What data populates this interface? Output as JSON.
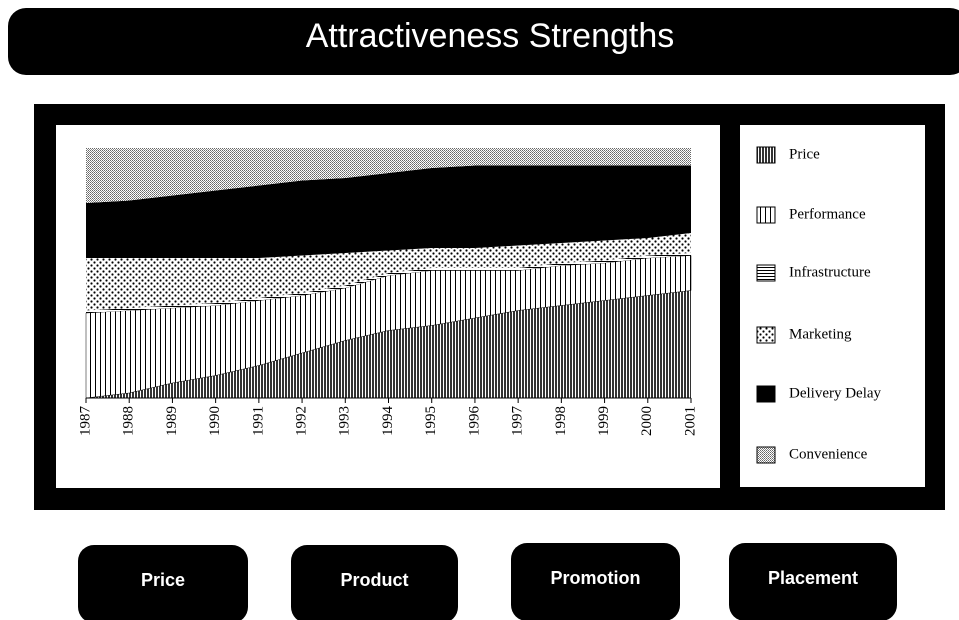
{
  "header": {
    "title": "Attractiveness Strengths"
  },
  "chart_data": {
    "type": "stacked_area",
    "categories": [
      "1987",
      "1988",
      "1989",
      "1990",
      "1991",
      "1992",
      "1993",
      "1994",
      "1995",
      "1996",
      "1997",
      "1998",
      "1999",
      "2000",
      "2001"
    ],
    "series": [
      {
        "name": "Price",
        "color": "#555555",
        "values": [
          0,
          2,
          6,
          9,
          13,
          18,
          23,
          27,
          29,
          32,
          35,
          37,
          39,
          41,
          43
        ]
      },
      {
        "name": "Performance",
        "color": "#ffffff",
        "values": [
          34,
          33,
          30,
          28,
          26,
          23,
          21,
          22,
          22,
          19,
          16,
          16,
          15,
          15,
          14
        ]
      },
      {
        "name": "Infrastructure",
        "color": "#888888",
        "values": [
          1,
          1,
          1,
          1,
          1,
          1,
          1,
          1,
          1,
          1,
          1,
          1,
          1,
          1,
          1
        ]
      },
      {
        "name": "Marketing",
        "color": "#dddddd",
        "values": [
          21,
          20,
          19,
          18,
          16,
          15,
          13,
          9,
          8,
          8,
          9,
          8,
          8,
          7,
          8
        ]
      },
      {
        "name": "Delivery Delay",
        "color": "#000000",
        "values": [
          22,
          23,
          25,
          27,
          29,
          30,
          30,
          31,
          32,
          33,
          32,
          31,
          30,
          29,
          27
        ]
      },
      {
        "name": "Convenience",
        "color": "#aaaaaa",
        "values": [
          22,
          21,
          19,
          17,
          15,
          13,
          12,
          10,
          8,
          7,
          7,
          7,
          7,
          7,
          7
        ]
      }
    ],
    "ylim": [
      0,
      100
    ]
  },
  "buttons": [
    "Price",
    "Product",
    "Promotion",
    "Placement"
  ]
}
